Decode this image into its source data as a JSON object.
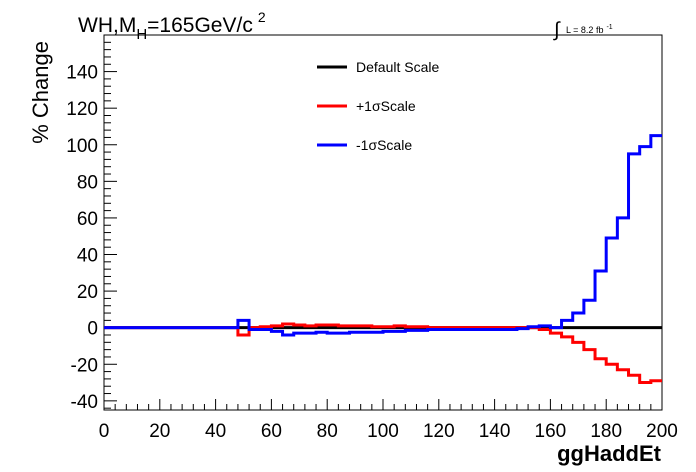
{
  "chart_data": {
    "type": "line",
    "step": true,
    "title": {
      "prefix": "WH,M",
      "subscript": "H",
      "suffix": "=165GeV/c",
      "superscript": "2"
    },
    "luminosity": {
      "integral": "∫",
      "text": "L = 8.2 fb",
      "superscript": "-1"
    },
    "xlabel": "ggHaddEt",
    "ylabel": "% Change",
    "xlim": [
      0,
      200
    ],
    "ylim": [
      -45,
      160
    ],
    "x_ticks": [
      0,
      20,
      40,
      60,
      80,
      100,
      120,
      140,
      160,
      180,
      200
    ],
    "y_ticks": [
      -40,
      -20,
      0,
      20,
      40,
      60,
      80,
      100,
      120,
      140
    ],
    "grid": false,
    "legend_position": "top-center",
    "x_edges": [
      0,
      48,
      52,
      56,
      60,
      64,
      68,
      72,
      76,
      80,
      84,
      88,
      92,
      96,
      100,
      104,
      108,
      112,
      116,
      120,
      124,
      128,
      132,
      136,
      140,
      144,
      148,
      152,
      156,
      160,
      164,
      168,
      172,
      176,
      180,
      184,
      188,
      192,
      196,
      200
    ],
    "series": [
      {
        "name": "Default Scale",
        "color": "#000000",
        "values": [
          0,
          0,
          0,
          0,
          0,
          0,
          0,
          0,
          0,
          0,
          0,
          0,
          0,
          0,
          0,
          0,
          0,
          0,
          0,
          0,
          0,
          0,
          0,
          0,
          0,
          0,
          0,
          0,
          0,
          0,
          0,
          0,
          0,
          0,
          0,
          0,
          0,
          0,
          0
        ]
      },
      {
        "name": "+1σScale",
        "color": "#ff0000",
        "values": [
          0,
          -4,
          0,
          0.5,
          1,
          2,
          1.5,
          1,
          1.5,
          1.5,
          1,
          1,
          1,
          0.5,
          0.5,
          1,
          0.5,
          0.5,
          0,
          0,
          0,
          0,
          0,
          0,
          0,
          0,
          0,
          0,
          -1,
          -3,
          -5,
          -8,
          -12,
          -17,
          -20,
          -23,
          -26,
          -30,
          -29
        ]
      },
      {
        "name": "-1σScale",
        "color": "#0000ff",
        "values": [
          0,
          4,
          -1,
          -1,
          -2,
          -4,
          -3,
          -3,
          -2.5,
          -3,
          -3,
          -2.5,
          -2.5,
          -2.5,
          -2,
          -2,
          -1.5,
          -1.5,
          -1,
          -1,
          -1,
          -1,
          -1,
          -1,
          -1,
          -1,
          -0.5,
          0.5,
          1,
          0,
          4,
          8,
          15,
          31,
          49,
          60,
          95,
          99,
          105
        ]
      }
    ]
  }
}
